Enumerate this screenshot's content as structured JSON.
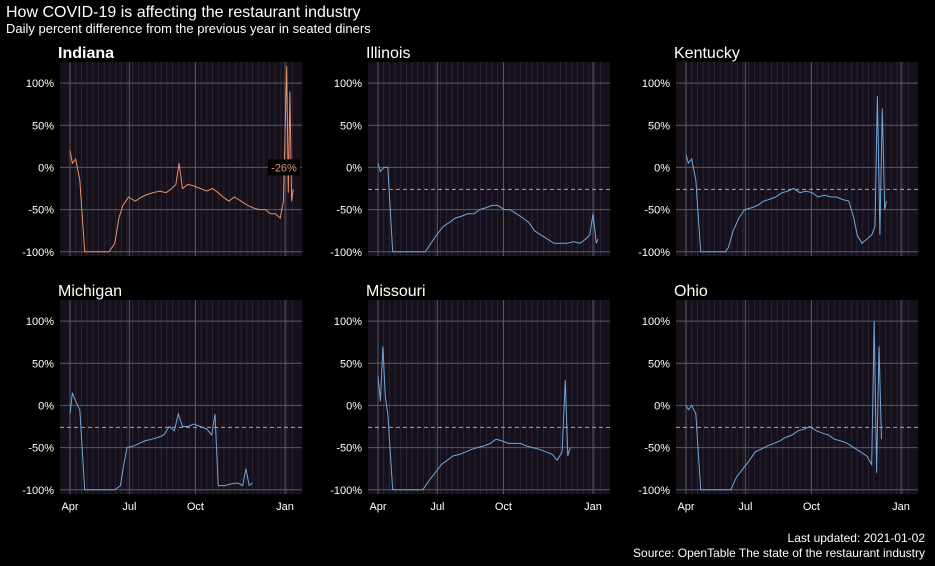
{
  "title": "How COVID-19 is affecting the restaurant industry",
  "subtitle": "Daily percent difference from the previous year in seated diners",
  "updated": "Last updated: 2021-01-02",
  "source": "Source: OpenTable The state of the restaurant industry",
  "colors": {
    "highlight": "#e8906a",
    "series": "#6ea8dc",
    "reference": "#e8906a",
    "panel_bg": "#15101a",
    "grid": "#5a5a64"
  },
  "chart_data": {
    "type": "line",
    "x_tick_labels": [
      "Apr",
      "Jul",
      "Oct",
      "Jan"
    ],
    "y_tick_labels": [
      "100%",
      "50%",
      "0%",
      "-50%",
      "-100%"
    ],
    "y_ticks": [
      100,
      50,
      0,
      -50,
      -100
    ],
    "ylim": [
      -105,
      125
    ],
    "reference_line": -26,
    "highlight_panel": "Indiana",
    "highlight_label": "-26%",
    "grid": true,
    "panels": [
      {
        "name": "Indiana",
        "highlight": true,
        "points": [
          [
            0,
            20
          ],
          [
            3,
            5
          ],
          [
            7,
            10
          ],
          [
            12,
            -15
          ],
          [
            18,
            -100
          ],
          [
            30,
            -100
          ],
          [
            48,
            -100
          ],
          [
            55,
            -90
          ],
          [
            60,
            -60
          ],
          [
            65,
            -45
          ],
          [
            72,
            -35
          ],
          [
            80,
            -40
          ],
          [
            88,
            -35
          ],
          [
            95,
            -32
          ],
          [
            102,
            -30
          ],
          [
            110,
            -28
          ],
          [
            118,
            -30
          ],
          [
            125,
            -25
          ],
          [
            130,
            -20
          ],
          [
            134,
            5
          ],
          [
            138,
            -25
          ],
          [
            145,
            -20
          ],
          [
            152,
            -22
          ],
          [
            160,
            -25
          ],
          [
            168,
            -28
          ],
          [
            175,
            -25
          ],
          [
            182,
            -30
          ],
          [
            188,
            -35
          ],
          [
            195,
            -40
          ],
          [
            202,
            -35
          ],
          [
            210,
            -40
          ],
          [
            218,
            -45
          ],
          [
            225,
            -48
          ],
          [
            232,
            -50
          ],
          [
            240,
            -50
          ],
          [
            246,
            -55
          ],
          [
            252,
            -55
          ],
          [
            258,
            -60
          ],
          [
            262,
            -40
          ],
          [
            266,
            120
          ],
          [
            268,
            -30
          ],
          [
            270,
            90
          ],
          [
            272,
            -40
          ],
          [
            274,
            -26
          ]
        ]
      },
      {
        "name": "Illinois",
        "highlight": false,
        "points": [
          [
            0,
            5
          ],
          [
            3,
            -5
          ],
          [
            7,
            0
          ],
          [
            12,
            0
          ],
          [
            18,
            -100
          ],
          [
            30,
            -100
          ],
          [
            48,
            -100
          ],
          [
            58,
            -100
          ],
          [
            65,
            -90
          ],
          [
            72,
            -80
          ],
          [
            80,
            -70
          ],
          [
            88,
            -65
          ],
          [
            95,
            -60
          ],
          [
            102,
            -58
          ],
          [
            110,
            -55
          ],
          [
            118,
            -55
          ],
          [
            125,
            -50
          ],
          [
            132,
            -48
          ],
          [
            140,
            -45
          ],
          [
            147,
            -45
          ],
          [
            155,
            -50
          ],
          [
            162,
            -50
          ],
          [
            170,
            -55
          ],
          [
            178,
            -60
          ],
          [
            185,
            -65
          ],
          [
            192,
            -75
          ],
          [
            200,
            -80
          ],
          [
            208,
            -85
          ],
          [
            216,
            -90
          ],
          [
            224,
            -90
          ],
          [
            232,
            -90
          ],
          [
            240,
            -88
          ],
          [
            248,
            -90
          ],
          [
            255,
            -85
          ],
          [
            260,
            -80
          ],
          [
            264,
            -55
          ],
          [
            268,
            -90
          ],
          [
            270,
            -85
          ]
        ]
      },
      {
        "name": "Kentucky",
        "highlight": false,
        "points": [
          [
            0,
            15
          ],
          [
            3,
            5
          ],
          [
            7,
            10
          ],
          [
            12,
            -15
          ],
          [
            18,
            -100
          ],
          [
            30,
            -100
          ],
          [
            48,
            -100
          ],
          [
            52,
            -95
          ],
          [
            58,
            -75
          ],
          [
            65,
            -60
          ],
          [
            72,
            -50
          ],
          [
            80,
            -48
          ],
          [
            88,
            -45
          ],
          [
            95,
            -40
          ],
          [
            102,
            -38
          ],
          [
            110,
            -35
          ],
          [
            118,
            -30
          ],
          [
            125,
            -28
          ],
          [
            132,
            -25
          ],
          [
            140,
            -30
          ],
          [
            147,
            -28
          ],
          [
            155,
            -30
          ],
          [
            162,
            -35
          ],
          [
            170,
            -33
          ],
          [
            178,
            -35
          ],
          [
            185,
            -35
          ],
          [
            192,
            -38
          ],
          [
            200,
            -40
          ],
          [
            206,
            -60
          ],
          [
            210,
            -80
          ],
          [
            216,
            -90
          ],
          [
            222,
            -85
          ],
          [
            228,
            -80
          ],
          [
            232,
            -70
          ],
          [
            235,
            85
          ],
          [
            238,
            -80
          ],
          [
            241,
            70
          ],
          [
            244,
            -50
          ],
          [
            246,
            -40
          ]
        ]
      },
      {
        "name": "Michigan",
        "highlight": false,
        "points": [
          [
            0,
            -10
          ],
          [
            3,
            15
          ],
          [
            7,
            5
          ],
          [
            12,
            -5
          ],
          [
            18,
            -100
          ],
          [
            30,
            -100
          ],
          [
            45,
            -100
          ],
          [
            55,
            -100
          ],
          [
            62,
            -95
          ],
          [
            66,
            -70
          ],
          [
            70,
            -50
          ],
          [
            78,
            -48
          ],
          [
            85,
            -45
          ],
          [
            92,
            -42
          ],
          [
            100,
            -40
          ],
          [
            108,
            -38
          ],
          [
            115,
            -35
          ],
          [
            122,
            -25
          ],
          [
            128,
            -30
          ],
          [
            133,
            -10
          ],
          [
            138,
            -25
          ],
          [
            145,
            -25
          ],
          [
            152,
            -22
          ],
          [
            160,
            -25
          ],
          [
            168,
            -28
          ],
          [
            174,
            -35
          ],
          [
            178,
            -10
          ],
          [
            182,
            -95
          ],
          [
            190,
            -95
          ],
          [
            198,
            -93
          ],
          [
            206,
            -92
          ],
          [
            212,
            -95
          ],
          [
            216,
            -75
          ],
          [
            220,
            -95
          ],
          [
            224,
            -92
          ]
        ]
      },
      {
        "name": "Missouri",
        "highlight": false,
        "points": [
          [
            0,
            35
          ],
          [
            3,
            5
          ],
          [
            6,
            70
          ],
          [
            9,
            10
          ],
          [
            12,
            -10
          ],
          [
            18,
            -100
          ],
          [
            30,
            -100
          ],
          [
            45,
            -100
          ],
          [
            55,
            -100
          ],
          [
            62,
            -90
          ],
          [
            70,
            -80
          ],
          [
            78,
            -70
          ],
          [
            85,
            -65
          ],
          [
            92,
            -60
          ],
          [
            100,
            -58
          ],
          [
            108,
            -55
          ],
          [
            115,
            -52
          ],
          [
            122,
            -50
          ],
          [
            130,
            -48
          ],
          [
            138,
            -45
          ],
          [
            145,
            -40
          ],
          [
            152,
            -42
          ],
          [
            160,
            -45
          ],
          [
            168,
            -45
          ],
          [
            175,
            -45
          ],
          [
            182,
            -48
          ],
          [
            190,
            -50
          ],
          [
            198,
            -52
          ],
          [
            206,
            -55
          ],
          [
            214,
            -58
          ],
          [
            220,
            -65
          ],
          [
            226,
            -55
          ],
          [
            230,
            30
          ],
          [
            233,
            -60
          ],
          [
            236,
            -50
          ]
        ]
      },
      {
        "name": "Ohio",
        "highlight": false,
        "points": [
          [
            0,
            0
          ],
          [
            3,
            -5
          ],
          [
            7,
            0
          ],
          [
            12,
            -10
          ],
          [
            18,
            -100
          ],
          [
            30,
            -100
          ],
          [
            45,
            -100
          ],
          [
            55,
            -100
          ],
          [
            62,
            -85
          ],
          [
            70,
            -75
          ],
          [
            78,
            -65
          ],
          [
            85,
            -55
          ],
          [
            92,
            -52
          ],
          [
            100,
            -48
          ],
          [
            108,
            -45
          ],
          [
            115,
            -42
          ],
          [
            122,
            -38
          ],
          [
            130,
            -35
          ],
          [
            138,
            -30
          ],
          [
            145,
            -28
          ],
          [
            152,
            -25
          ],
          [
            160,
            -30
          ],
          [
            168,
            -33
          ],
          [
            175,
            -35
          ],
          [
            182,
            -40
          ],
          [
            190,
            -42
          ],
          [
            198,
            -45
          ],
          [
            206,
            -50
          ],
          [
            214,
            -55
          ],
          [
            222,
            -60
          ],
          [
            228,
            -70
          ],
          [
            231,
            100
          ],
          [
            234,
            -80
          ],
          [
            237,
            70
          ],
          [
            240,
            -40
          ]
        ]
      }
    ]
  }
}
